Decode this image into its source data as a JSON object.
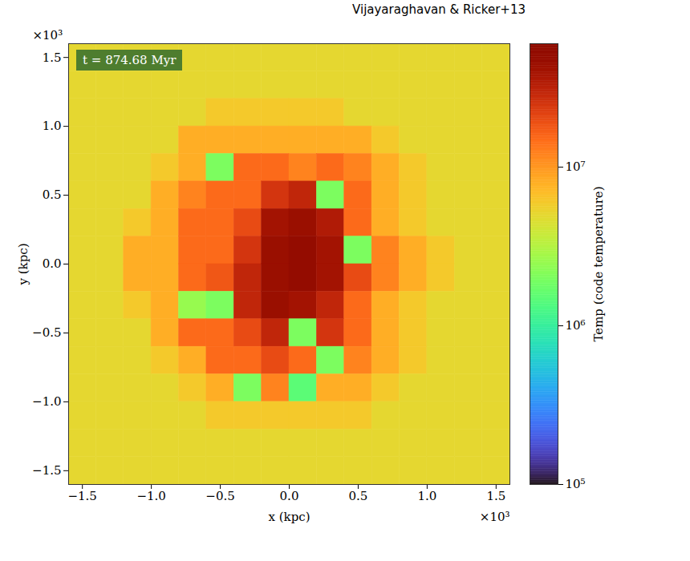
{
  "chart_data": {
    "type": "heatmap",
    "title": "Vijayaraghavan & Ricker+13",
    "xlabel": "x (kpc)",
    "ylabel": "y (kpc)",
    "x_multiplier": "×10³",
    "y_multiplier": "×10³",
    "annotations": [
      "t = 874.68 Myr"
    ],
    "xlim": [
      -1.6,
      1.6
    ],
    "ylim": [
      -1.6,
      1.6
    ],
    "xticks": [
      {
        "value": -1.5,
        "label": "−1.5"
      },
      {
        "value": -1.0,
        "label": "−1.0"
      },
      {
        "value": -0.5,
        "label": "−0.5"
      },
      {
        "value": 0,
        "label": "0.0"
      },
      0.5,
      {
        "value": 1.0,
        "label": "1.0"
      },
      1.5
    ],
    "yticks": [
      {
        "value": -1.5,
        "label": "−1.5"
      },
      {
        "value": -1.0,
        "label": "−1.0"
      },
      {
        "value": -0.5,
        "label": "−0.5"
      },
      {
        "value": 0,
        "label": "0.0"
      },
      0.5,
      {
        "value": 1.0,
        "label": "1.0"
      },
      1.5
    ],
    "color": "turbo",
    "cells": {
      "x": [
        -1.5,
        -1.3,
        -1.1,
        -0.9,
        -0.7,
        -0.5,
        -0.3,
        -0.1,
        0.1,
        0.3,
        0.5,
        0.7,
        0.9,
        1.1,
        1.3,
        1.5
      ],
      "y": [
        1.5,
        1.3,
        1.1,
        0.9,
        0.7,
        0.5,
        0.3,
        0.1,
        -0.1,
        -0.3,
        -0.5,
        -0.7,
        -0.9,
        -1.1,
        -1.3,
        -1.5
      ],
      "values": [
        [
          5000000,
          5000000,
          5000000,
          5000000,
          5000000,
          5000000,
          5000000,
          5000000,
          5000000,
          5000000,
          5000000,
          5000000,
          5000000,
          5000000,
          5000000,
          5000000
        ],
        [
          5000000,
          5000000,
          5000000,
          5000000,
          5000000,
          5000000,
          5000000,
          5000000,
          5000000,
          5000000,
          5000000,
          5000000,
          5000000,
          5000000,
          5000000,
          5000000
        ],
        [
          5000000,
          5000000,
          5000000,
          5000000,
          5000000,
          6000000,
          6000000,
          6000000,
          6000000,
          6000000,
          5000000,
          5000000,
          5000000,
          5000000,
          5000000,
          5000000
        ],
        [
          5000000,
          5000000,
          5000000,
          5000000,
          8000000,
          8000000,
          8000000,
          8000000,
          8000000,
          8000000,
          8000000,
          6000000,
          5000000,
          5000000,
          5000000,
          5000000
        ],
        [
          5000000,
          5000000,
          5000000,
          6000000,
          8000000,
          2000000,
          15000000,
          15000000,
          12000000,
          15000000,
          12000000,
          8000000,
          6000000,
          5000000,
          5000000,
          5000000
        ],
        [
          5000000,
          5000000,
          5000000,
          8000000,
          12000000,
          15000000,
          15000000,
          25000000,
          30000000,
          2000000,
          15000000,
          8000000,
          6000000,
          5000000,
          5000000,
          5000000
        ],
        [
          5000000,
          5000000,
          6000000,
          8000000,
          15000000,
          15000000,
          20000000,
          40000000,
          45000000,
          35000000,
          15000000,
          8000000,
          6000000,
          5000000,
          5000000,
          5000000
        ],
        [
          5000000,
          5000000,
          8000000,
          8000000,
          15000000,
          15000000,
          25000000,
          45000000,
          50000000,
          40000000,
          2000000,
          12000000,
          8000000,
          6000000,
          5000000,
          5000000
        ],
        [
          5000000,
          5000000,
          8000000,
          8000000,
          15000000,
          18000000,
          30000000,
          45000000,
          50000000,
          40000000,
          20000000,
          12000000,
          8000000,
          6000000,
          5000000,
          5000000
        ],
        [
          5000000,
          5000000,
          6000000,
          8000000,
          2500000,
          2000000,
          30000000,
          45000000,
          40000000,
          30000000,
          15000000,
          8000000,
          6000000,
          5000000,
          5000000,
          5000000
        ],
        [
          5000000,
          5000000,
          5000000,
          8000000,
          15000000,
          15000000,
          20000000,
          30000000,
          2000000,
          25000000,
          15000000,
          8000000,
          6000000,
          5000000,
          5000000,
          5000000
        ],
        [
          5000000,
          5000000,
          5000000,
          6000000,
          8000000,
          15000000,
          15000000,
          20000000,
          15000000,
          2000000,
          12000000,
          8000000,
          6000000,
          5000000,
          5000000,
          5000000
        ],
        [
          5000000,
          5000000,
          5000000,
          5000000,
          6000000,
          8000000,
          2000000,
          12000000,
          1500000,
          8000000,
          8000000,
          6000000,
          5000000,
          5000000,
          5000000,
          5000000
        ],
        [
          5000000,
          5000000,
          5000000,
          5000000,
          5000000,
          6000000,
          6000000,
          6000000,
          6000000,
          6000000,
          6000000,
          5000000,
          5000000,
          5000000,
          5000000,
          5000000
        ],
        [
          5000000,
          5000000,
          5000000,
          5000000,
          5000000,
          5000000,
          5000000,
          5000000,
          5000000,
          5000000,
          5000000,
          5000000,
          5000000,
          5000000,
          5000000,
          5000000
        ],
        [
          5000000,
          5000000,
          5000000,
          5000000,
          5000000,
          5000000,
          5000000,
          5000000,
          5000000,
          5000000,
          5000000,
          5000000,
          5000000,
          5000000,
          5000000,
          5000000
        ]
      ]
    },
    "colorbar": {
      "label": "Temp (code temperature)",
      "range": [
        100000,
        60000000
      ],
      "ticks": [
        {
          "value": 100000,
          "label": "10⁵"
        },
        {
          "value": 1000000,
          "label": "10⁶"
        },
        {
          "value": 10000000,
          "label": "10⁷"
        }
      ],
      "log": true
    }
  }
}
